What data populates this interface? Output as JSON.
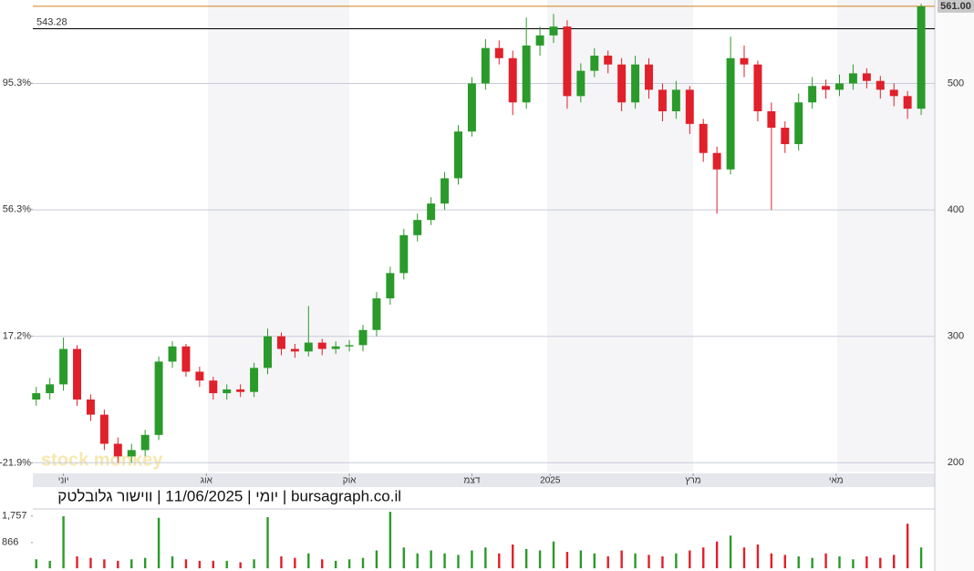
{
  "chart_data": {
    "type": "candlestick",
    "title": "יומי | 11/06/2025 | ווישור גלובלטק | bursagraph.co.il",
    "watermark": "stock monkey",
    "up_color": "#2a9a2a",
    "down_color": "#e0202a",
    "x": [
      0,
      4,
      8,
      12,
      16,
      20,
      24,
      28,
      32,
      36,
      40,
      44,
      48,
      52,
      56,
      60,
      64,
      68,
      72,
      76,
      80,
      84,
      88,
      92,
      96,
      100,
      104,
      108,
      112,
      116,
      120,
      124,
      128,
      132,
      136,
      140,
      144,
      148,
      152,
      156,
      160,
      164,
      168,
      172,
      176,
      180,
      184,
      188,
      192,
      196,
      200,
      204,
      208,
      212,
      216,
      220,
      224,
      228,
      232,
      236,
      240,
      244,
      248,
      252,
      256,
      260
    ],
    "open": [
      250,
      255,
      262,
      290,
      250,
      238,
      215,
      205,
      210,
      222,
      280,
      292,
      272,
      265,
      255,
      258,
      256,
      275,
      300,
      290,
      288,
      295,
      290,
      292,
      293,
      305,
      330,
      350,
      380,
      392,
      405,
      425,
      462,
      500,
      528,
      520,
      485,
      530,
      538,
      545,
      490,
      510,
      522,
      515,
      485,
      515,
      495,
      478,
      495,
      468,
      445,
      432,
      520,
      515,
      478,
      465,
      452,
      485,
      498,
      495,
      500,
      508,
      502,
      495,
      490,
      480
    ],
    "high": [
      260,
      267,
      299,
      293,
      254,
      242,
      220,
      215,
      226,
      284,
      296,
      294,
      276,
      268,
      262,
      262,
      279,
      306,
      303,
      294,
      324,
      298,
      296,
      297,
      309,
      335,
      355,
      385,
      397,
      410,
      430,
      467,
      505,
      535,
      534,
      526,
      552,
      545,
      555,
      550,
      516,
      528,
      526,
      520,
      522,
      520,
      500,
      502,
      498,
      472,
      450,
      537,
      530,
      518,
      485,
      470,
      492,
      505,
      503,
      507,
      515,
      512,
      506,
      500,
      494,
      563
    ],
    "low": [
      245,
      250,
      257,
      245,
      233,
      210,
      200,
      200,
      205,
      218,
      275,
      268,
      260,
      250,
      250,
      252,
      252,
      270,
      285,
      283,
      284,
      285,
      286,
      288,
      288,
      300,
      325,
      345,
      375,
      388,
      400,
      420,
      458,
      495,
      515,
      475,
      480,
      522,
      532,
      480,
      485,
      505,
      508,
      478,
      480,
      488,
      470,
      472,
      460,
      438,
      397,
      428,
      505,
      470,
      400,
      445,
      447,
      480,
      488,
      490,
      495,
      496,
      488,
      482,
      472,
      475
    ],
    "close": [
      255,
      262,
      290,
      250,
      238,
      215,
      205,
      210,
      222,
      280,
      292,
      272,
      265,
      255,
      258,
      256,
      275,
      300,
      290,
      288,
      295,
      290,
      292,
      293,
      305,
      330,
      350,
      380,
      392,
      405,
      425,
      462,
      500,
      528,
      520,
      485,
      530,
      538,
      545,
      490,
      510,
      522,
      515,
      485,
      515,
      495,
      478,
      495,
      468,
      445,
      432,
      520,
      515,
      478,
      465,
      452,
      485,
      498,
      495,
      500,
      508,
      502,
      495,
      490,
      480,
      561
    ],
    "volume": [
      300,
      250,
      1750,
      400,
      350,
      300,
      250,
      300,
      350,
      1700,
      400,
      300,
      250,
      250,
      250,
      200,
      300,
      1720,
      400,
      350,
      500,
      300,
      250,
      300,
      350,
      600,
      1900,
      700,
      500,
      600,
      500,
      450,
      600,
      700,
      500,
      800,
      650,
      600,
      900,
      550,
      600,
      500,
      400,
      600,
      500,
      450,
      400,
      500,
      600,
      700,
      900,
      1100,
      700,
      800,
      500,
      450,
      400,
      350,
      500,
      400,
      300,
      400,
      350,
      450,
      1500,
      700
    ],
    "xlim": [
      -1,
      264
    ],
    "xticks": [
      {
        "value": 8,
        "label": "יוני"
      },
      {
        "value": 50,
        "label": "אוג"
      },
      {
        "value": 92,
        "label": "אוק"
      },
      {
        "value": 128,
        "label": "דצמ"
      },
      {
        "value": 151,
        "label": "2025"
      },
      {
        "value": 193,
        "label": "מרץ"
      },
      {
        "value": 235,
        "label": "מאי"
      }
    ],
    "ylim": [
      193,
      566
    ],
    "yticks": [
      200,
      300,
      400,
      500
    ],
    "y2lim": [
      -24.6,
      121.0
    ],
    "y2ticks": [
      {
        "value": -21.9,
        "label": "-21.9%"
      },
      {
        "value": 17.2,
        "label": "17.2%"
      },
      {
        "value": 56.3,
        "label": "56.3%"
      },
      {
        "value": 95.3,
        "label": "95.3%"
      }
    ],
    "reference_line": {
      "value": 543.28,
      "label": "543.28"
    },
    "last_price": {
      "value": 561,
      "label": "561.00"
    },
    "vlim": [
      0,
      1935
    ],
    "vticks": [
      {
        "value": 1757,
        "label": "1,757"
      },
      866
    ],
    "grid": true
  }
}
